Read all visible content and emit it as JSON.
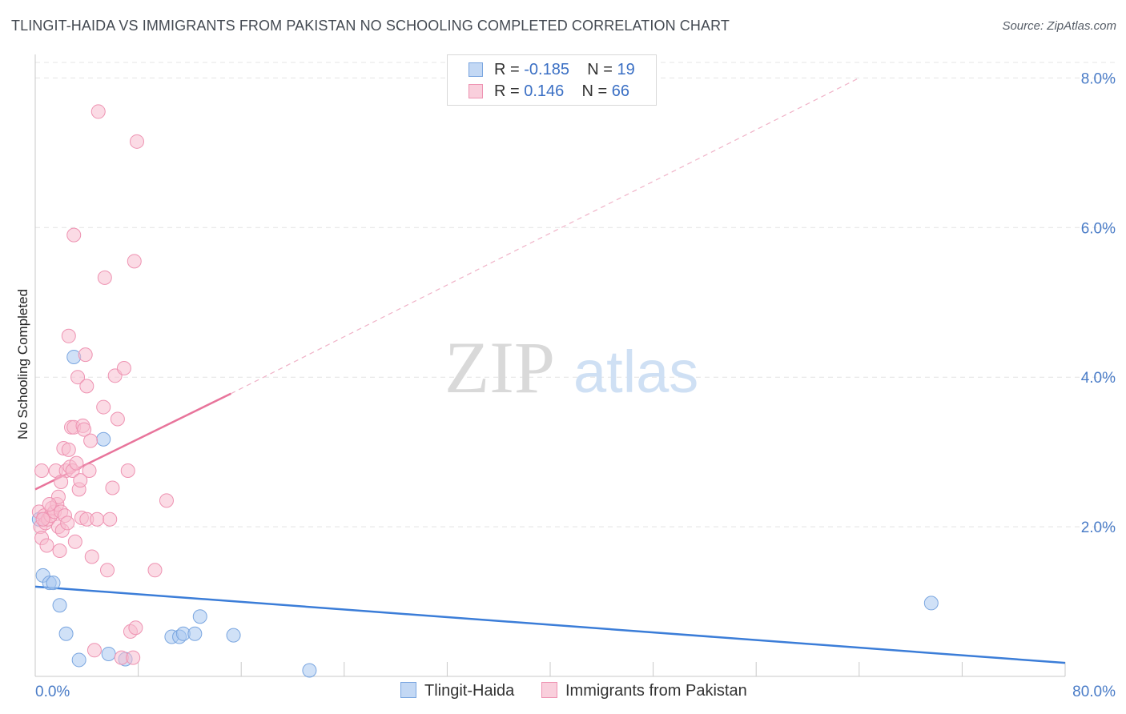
{
  "title": "TLINGIT-HAIDA VS IMMIGRANTS FROM PAKISTAN NO SCHOOLING COMPLETED CORRELATION CHART",
  "source": "Source: ZipAtlas.com",
  "watermark": {
    "zip": "ZIP",
    "atlas": "atlas"
  },
  "legend": {
    "rows": [
      {
        "r_label": "R = ",
        "r_value": "-0.185",
        "n_label": "N = ",
        "n_value": "19"
      },
      {
        "r_label": "R = ",
        "r_value": " 0.146",
        "n_label": "N = ",
        "n_value": "66"
      }
    ]
  },
  "chart_data": {
    "type": "scatter",
    "title": "TLINGIT-HAIDA VS IMMIGRANTS FROM PAKISTAN NO SCHOOLING COMPLETED CORRELATION CHART",
    "xlabel": "",
    "ylabel": "No Schooling Completed",
    "xlim": [
      0,
      80
    ],
    "ylim": [
      0,
      8.4
    ],
    "x_tick_labels": [
      "0.0%",
      "80.0%"
    ],
    "y_ticks": [
      2,
      4,
      6,
      8
    ],
    "y_tick_labels": [
      "2.0%",
      "4.0%",
      "6.0%",
      "8.0%"
    ],
    "grid": true,
    "legend_position": "top-center",
    "series": [
      {
        "name": "Tlingit-Haida",
        "color": "#a9c8f0",
        "edge": "#7aa6e0",
        "line_color": "#3b7dd8",
        "trend": {
          "x0": 0,
          "y0": 1.2,
          "x1": 80,
          "y1": 0.18
        },
        "points": [
          {
            "x": 0.6,
            "y": 1.35
          },
          {
            "x": 1.1,
            "y": 1.25
          },
          {
            "x": 1.4,
            "y": 1.25
          },
          {
            "x": 1.9,
            "y": 0.95
          },
          {
            "x": 2.4,
            "y": 0.57
          },
          {
            "x": 3.0,
            "y": 4.27
          },
          {
            "x": 3.4,
            "y": 0.22
          },
          {
            "x": 5.3,
            "y": 3.17
          },
          {
            "x": 5.7,
            "y": 0.3
          },
          {
            "x": 7.0,
            "y": 0.23
          },
          {
            "x": 10.6,
            "y": 0.53
          },
          {
            "x": 11.2,
            "y": 0.53
          },
          {
            "x": 11.5,
            "y": 0.57
          },
          {
            "x": 12.4,
            "y": 0.57
          },
          {
            "x": 12.8,
            "y": 0.8
          },
          {
            "x": 15.4,
            "y": 0.55
          },
          {
            "x": 21.3,
            "y": 0.08
          },
          {
            "x": 69.6,
            "y": 0.98
          },
          {
            "x": 0.3,
            "y": 2.1
          }
        ]
      },
      {
        "name": "Immigrants from Pakistan",
        "color": "#f7bdd0",
        "edge": "#ee93b2",
        "line_color": "#e8749b",
        "trend": {
          "x0": 0,
          "y0": 2.5,
          "x1": 15.2,
          "y1": 3.78
        },
        "trend_dashed": {
          "x0": 15.2,
          "y0": 3.78,
          "x1": 64,
          "y1": 8.0
        },
        "points": [
          {
            "x": 0.3,
            "y": 2.2
          },
          {
            "x": 0.4,
            "y": 2.0
          },
          {
            "x": 0.5,
            "y": 1.85
          },
          {
            "x": 0.5,
            "y": 2.75
          },
          {
            "x": 0.7,
            "y": 2.15
          },
          {
            "x": 0.8,
            "y": 2.05
          },
          {
            "x": 0.9,
            "y": 1.75
          },
          {
            "x": 1.0,
            "y": 2.1
          },
          {
            "x": 1.2,
            "y": 2.15
          },
          {
            "x": 1.3,
            "y": 2.25
          },
          {
            "x": 1.5,
            "y": 2.2
          },
          {
            "x": 1.6,
            "y": 2.75
          },
          {
            "x": 1.7,
            "y": 2.3
          },
          {
            "x": 1.8,
            "y": 2.0
          },
          {
            "x": 1.8,
            "y": 2.4
          },
          {
            "x": 1.9,
            "y": 1.68
          },
          {
            "x": 2.0,
            "y": 2.2
          },
          {
            "x": 2.1,
            "y": 1.95
          },
          {
            "x": 2.2,
            "y": 3.05
          },
          {
            "x": 2.3,
            "y": 2.15
          },
          {
            "x": 2.4,
            "y": 2.75
          },
          {
            "x": 2.5,
            "y": 2.05
          },
          {
            "x": 2.6,
            "y": 3.03
          },
          {
            "x": 2.6,
            "y": 4.55
          },
          {
            "x": 2.7,
            "y": 2.8
          },
          {
            "x": 2.8,
            "y": 3.33
          },
          {
            "x": 2.9,
            "y": 2.75
          },
          {
            "x": 3.0,
            "y": 3.33
          },
          {
            "x": 3.0,
            "y": 5.9
          },
          {
            "x": 3.1,
            "y": 1.8
          },
          {
            "x": 3.2,
            "y": 2.85
          },
          {
            "x": 3.3,
            "y": 4.0
          },
          {
            "x": 3.4,
            "y": 2.5
          },
          {
            "x": 3.5,
            "y": 2.62
          },
          {
            "x": 3.6,
            "y": 2.12
          },
          {
            "x": 3.7,
            "y": 3.35
          },
          {
            "x": 3.8,
            "y": 3.3
          },
          {
            "x": 3.9,
            "y": 4.3
          },
          {
            "x": 4.0,
            "y": 2.1
          },
          {
            "x": 4.0,
            "y": 3.88
          },
          {
            "x": 4.2,
            "y": 2.75
          },
          {
            "x": 4.3,
            "y": 3.15
          },
          {
            "x": 4.4,
            "y": 1.6
          },
          {
            "x": 4.6,
            "y": 0.35
          },
          {
            "x": 4.8,
            "y": 2.1
          },
          {
            "x": 4.9,
            "y": 7.55
          },
          {
            "x": 5.3,
            "y": 3.6
          },
          {
            "x": 5.4,
            "y": 5.33
          },
          {
            "x": 5.6,
            "y": 1.42
          },
          {
            "x": 5.8,
            "y": 2.1
          },
          {
            "x": 6.0,
            "y": 2.52
          },
          {
            "x": 6.2,
            "y": 4.02
          },
          {
            "x": 6.4,
            "y": 3.44
          },
          {
            "x": 6.7,
            "y": 0.25
          },
          {
            "x": 6.9,
            "y": 4.12
          },
          {
            "x": 7.2,
            "y": 2.75
          },
          {
            "x": 7.4,
            "y": 0.6
          },
          {
            "x": 7.6,
            "y": 0.25
          },
          {
            "x": 7.7,
            "y": 5.55
          },
          {
            "x": 7.8,
            "y": 0.65
          },
          {
            "x": 7.9,
            "y": 7.15
          },
          {
            "x": 9.3,
            "y": 1.42
          },
          {
            "x": 10.2,
            "y": 2.35
          },
          {
            "x": 0.6,
            "y": 2.1
          },
          {
            "x": 1.1,
            "y": 2.3
          },
          {
            "x": 2.0,
            "y": 2.6
          }
        ]
      }
    ]
  }
}
